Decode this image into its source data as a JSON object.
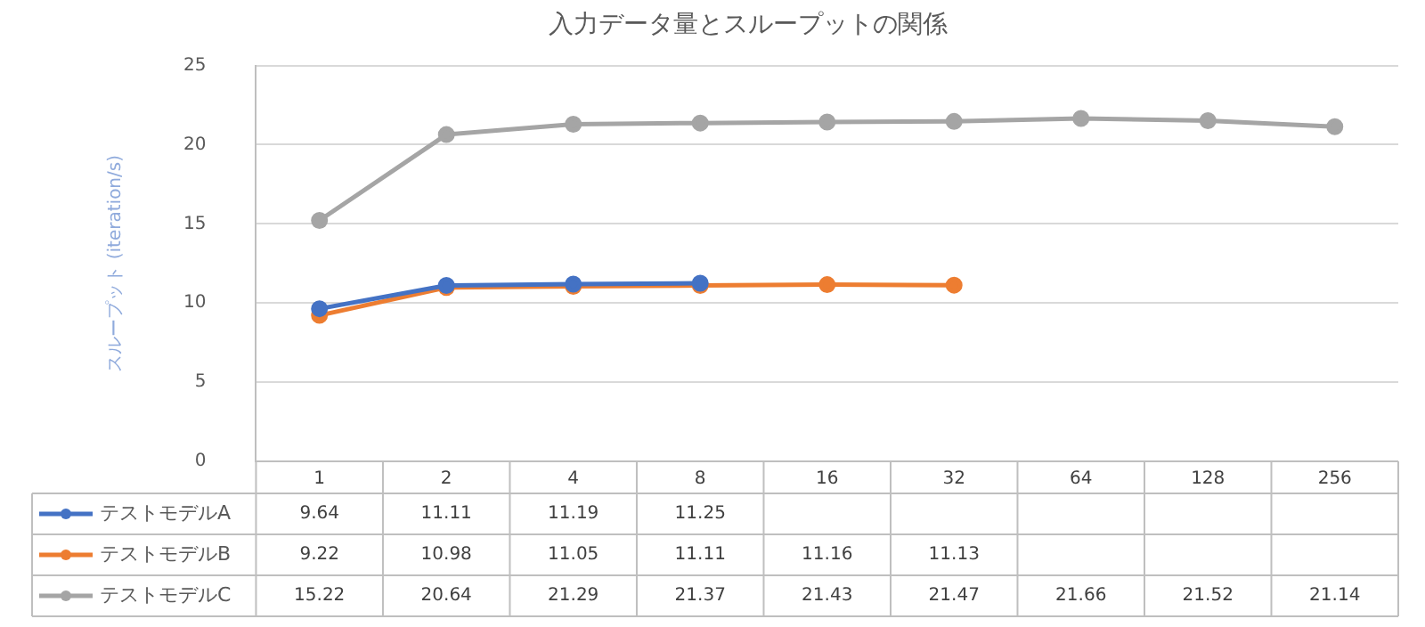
{
  "chart_data": {
    "type": "line",
    "title": "入力データ量とスループットの関係",
    "ylabel": "スループット (iteration/s)",
    "categories": [
      "1",
      "2",
      "4",
      "8",
      "16",
      "32",
      "64",
      "128",
      "256"
    ],
    "series": [
      {
        "name": "テストモデルA",
        "color": "#4472c4",
        "values": [
          9.64,
          11.11,
          11.19,
          11.25,
          null,
          null,
          null,
          null,
          null
        ]
      },
      {
        "name": "テストモデルB",
        "color": "#ed7d31",
        "values": [
          9.22,
          10.98,
          11.05,
          11.11,
          11.16,
          11.13,
          null,
          null,
          null
        ]
      },
      {
        "name": "テストモデルC",
        "color": "#a5a5a5",
        "values": [
          15.22,
          20.64,
          21.29,
          21.37,
          21.43,
          21.47,
          21.66,
          21.52,
          21.14
        ]
      }
    ],
    "ylim": [
      0,
      25
    ],
    "yticks": [
      0,
      5,
      10,
      15,
      20,
      25
    ],
    "grid": "y",
    "marker": "circle",
    "line_style": "solid",
    "data_labels": true,
    "legend": "bottom"
  }
}
